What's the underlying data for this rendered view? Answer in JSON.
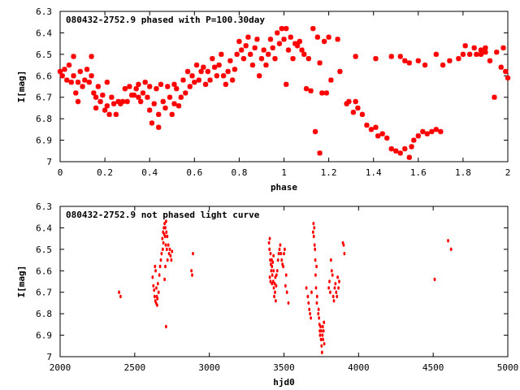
{
  "chart_data": [
    {
      "type": "scatter",
      "title": "080432-2752.9 phased with P=100.30day",
      "xlabel": "phase",
      "ylabel": "I[mag]",
      "xlim": [
        0,
        2
      ],
      "ylim": [
        7.0,
        6.3
      ],
      "y_inverted": true,
      "grid": false,
      "marker_color": "#ff0000",
      "marker": "star",
      "x_ticks": [
        "0",
        "0.2",
        "0.4",
        "0.6",
        "0.8",
        "1",
        "1.2",
        "1.4",
        "1.6",
        "1.8",
        "2"
      ],
      "y_ticks": [
        "6.3",
        "6.4",
        "6.5",
        "6.6",
        "6.7",
        "6.8",
        "6.9",
        "7"
      ],
      "points": [
        [
          0.0,
          6.58
        ],
        [
          0.01,
          6.6
        ],
        [
          0.02,
          6.57
        ],
        [
          0.03,
          6.62
        ],
        [
          0.04,
          6.55
        ],
        [
          0.05,
          6.63
        ],
        [
          0.06,
          6.51
        ],
        [
          0.06,
          6.6
        ],
        [
          0.07,
          6.68
        ],
        [
          0.08,
          6.72
        ],
        [
          0.08,
          6.63
        ],
        [
          0.09,
          6.58
        ],
        [
          0.1,
          6.65
        ],
        [
          0.11,
          6.62
        ],
        [
          0.12,
          6.57
        ],
        [
          0.13,
          6.63
        ],
        [
          0.14,
          6.51
        ],
        [
          0.14,
          6.6
        ],
        [
          0.15,
          6.68
        ],
        [
          0.16,
          6.75
        ],
        [
          0.16,
          6.7
        ],
        [
          0.17,
          6.65
        ],
        [
          0.18,
          6.72
        ],
        [
          0.19,
          6.69
        ],
        [
          0.2,
          6.76
        ],
        [
          0.21,
          6.74
        ],
        [
          0.21,
          6.63
        ],
        [
          0.22,
          6.78
        ],
        [
          0.23,
          6.7
        ],
        [
          0.24,
          6.73
        ],
        [
          0.25,
          6.78
        ],
        [
          0.26,
          6.72
        ],
        [
          0.27,
          6.73
        ],
        [
          0.28,
          6.72
        ],
        [
          0.29,
          6.66
        ],
        [
          0.3,
          6.72
        ],
        [
          0.31,
          6.65
        ],
        [
          0.32,
          6.69
        ],
        [
          0.33,
          6.69
        ],
        [
          0.34,
          6.66
        ],
        [
          0.35,
          6.7
        ],
        [
          0.35,
          6.64
        ],
        [
          0.36,
          6.72
        ],
        [
          0.37,
          6.68
        ],
        [
          0.38,
          6.63
        ],
        [
          0.39,
          6.7
        ],
        [
          0.4,
          6.65
        ],
        [
          0.4,
          6.76
        ],
        [
          0.41,
          6.82
        ],
        [
          0.42,
          6.73
        ],
        [
          0.43,
          6.66
        ],
        [
          0.44,
          6.78
        ],
        [
          0.44,
          6.84
        ],
        [
          0.45,
          6.64
        ],
        [
          0.46,
          6.72
        ],
        [
          0.47,
          6.75
        ],
        [
          0.48,
          6.65
        ],
        [
          0.49,
          6.7
        ],
        [
          0.5,
          6.78
        ],
        [
          0.51,
          6.73
        ],
        [
          0.51,
          6.64
        ],
        [
          0.52,
          6.66
        ],
        [
          0.53,
          6.74
        ],
        [
          0.54,
          6.7
        ],
        [
          0.55,
          6.62
        ],
        [
          0.56,
          6.68
        ],
        [
          0.57,
          6.58
        ],
        [
          0.58,
          6.65
        ],
        [
          0.59,
          6.6
        ],
        [
          0.6,
          6.63
        ],
        [
          0.61,
          6.55
        ],
        [
          0.62,
          6.62
        ],
        [
          0.63,
          6.58
        ],
        [
          0.64,
          6.56
        ],
        [
          0.65,
          6.64
        ],
        [
          0.66,
          6.58
        ],
        [
          0.67,
          6.62
        ],
        [
          0.68,
          6.52
        ],
        [
          0.69,
          6.56
        ],
        [
          0.7,
          6.6
        ],
        [
          0.71,
          6.55
        ],
        [
          0.72,
          6.5
        ],
        [
          0.73,
          6.6
        ],
        [
          0.74,
          6.64
        ],
        [
          0.75,
          6.58
        ],
        [
          0.76,
          6.53
        ],
        [
          0.77,
          6.62
        ],
        [
          0.78,
          6.57
        ],
        [
          0.79,
          6.5
        ],
        [
          0.8,
          6.44
        ],
        [
          0.81,
          6.48
        ],
        [
          0.82,
          6.52
        ],
        [
          0.83,
          6.46
        ],
        [
          0.84,
          6.42
        ],
        [
          0.85,
          6.5
        ],
        [
          0.86,
          6.55
        ],
        [
          0.87,
          6.47
        ],
        [
          0.88,
          6.43
        ],
        [
          0.89,
          6.6
        ],
        [
          0.9,
          6.52
        ],
        [
          0.91,
          6.48
        ],
        [
          0.92,
          6.55
        ],
        [
          0.93,
          6.5
        ],
        [
          0.94,
          6.43
        ],
        [
          0.95,
          6.47
        ],
        [
          0.96,
          6.52
        ],
        [
          0.97,
          6.4
        ],
        [
          0.98,
          6.45
        ],
        [
          0.99,
          6.38
        ],
        [
          1.0,
          6.43
        ],
        [
          1.01,
          6.64
        ],
        [
          1.01,
          6.38
        ],
        [
          1.02,
          6.48
        ],
        [
          1.03,
          6.42
        ],
        [
          1.04,
          6.52
        ],
        [
          1.05,
          6.45
        ],
        [
          1.06,
          6.46
        ],
        [
          1.07,
          6.44
        ],
        [
          1.08,
          6.48
        ],
        [
          1.09,
          6.5
        ],
        [
          1.1,
          6.66
        ],
        [
          1.11,
          6.52
        ],
        [
          1.12,
          6.67
        ],
        [
          1.13,
          6.38
        ],
        [
          1.14,
          6.86
        ],
        [
          1.15,
          6.42
        ],
        [
          1.16,
          6.54
        ],
        [
          1.16,
          6.96
        ],
        [
          1.17,
          6.68
        ],
        [
          1.18,
          6.44
        ],
        [
          1.19,
          6.68
        ],
        [
          1.2,
          6.42
        ],
        [
          1.21,
          6.62
        ],
        [
          1.25,
          6.58
        ],
        [
          1.28,
          6.73
        ],
        [
          1.29,
          6.72
        ],
        [
          1.31,
          6.77
        ],
        [
          1.32,
          6.72
        ],
        [
          1.33,
          6.75
        ],
        [
          1.35,
          6.78
        ],
        [
          1.37,
          6.83
        ],
        [
          1.39,
          6.85
        ],
        [
          1.41,
          6.84
        ],
        [
          1.42,
          6.88
        ],
        [
          1.44,
          6.87
        ],
        [
          1.46,
          6.89
        ],
        [
          1.48,
          6.94
        ],
        [
          1.5,
          6.95
        ],
        [
          1.52,
          6.96
        ],
        [
          1.54,
          6.94
        ],
        [
          1.56,
          6.98
        ],
        [
          1.57,
          6.93
        ],
        [
          1.58,
          6.9
        ],
        [
          1.6,
          6.88
        ],
        [
          1.62,
          6.86
        ],
        [
          1.64,
          6.87
        ],
        [
          1.66,
          6.86
        ],
        [
          1.68,
          6.85
        ],
        [
          1.7,
          6.86
        ],
        [
          1.24,
          6.43
        ],
        [
          1.32,
          6.51
        ],
        [
          1.41,
          6.52
        ],
        [
          1.48,
          6.51
        ],
        [
          1.52,
          6.51
        ],
        [
          1.54,
          6.53
        ],
        [
          1.56,
          6.54
        ],
        [
          1.6,
          6.53
        ],
        [
          1.63,
          6.55
        ],
        [
          1.68,
          6.5
        ],
        [
          1.71,
          6.55
        ],
        [
          1.74,
          6.53
        ],
        [
          1.78,
          6.52
        ],
        [
          1.8,
          6.5
        ],
        [
          1.83,
          6.5
        ],
        [
          1.86,
          6.5
        ],
        [
          1.88,
          6.5
        ],
        [
          1.9,
          6.49
        ],
        [
          1.92,
          6.53
        ],
        [
          1.95,
          6.49
        ],
        [
          1.97,
          6.56
        ],
        [
          1.99,
          6.58
        ],
        [
          2.0,
          6.61
        ],
        [
          1.94,
          6.7
        ],
        [
          1.88,
          6.48
        ],
        [
          1.85,
          6.47
        ],
        [
          1.9,
          6.47
        ],
        [
          1.81,
          6.46
        ],
        [
          1.98,
          6.47
        ]
      ]
    },
    {
      "type": "scatter",
      "title": "080432-2752.9 not phased light curve",
      "xlabel": "hjd0",
      "ylabel": "I[mag]",
      "xlim": [
        2000,
        5000
      ],
      "ylim": [
        7.0,
        6.3
      ],
      "y_inverted": true,
      "grid": false,
      "marker_color": "#ff0000",
      "marker": "dot",
      "x_ticks": [
        "2000",
        "2500",
        "3000",
        "3500",
        "4000",
        "4500",
        "5000"
      ],
      "y_ticks": [
        "6.3",
        "6.4",
        "6.5",
        "6.6",
        "6.7",
        "6.8",
        "6.9",
        "7"
      ],
      "points": [
        [
          2395,
          6.7
        ],
        [
          2405,
          6.72
        ],
        [
          2620,
          6.63
        ],
        [
          2625,
          6.67
        ],
        [
          2630,
          6.69
        ],
        [
          2633,
          6.72
        ],
        [
          2636,
          6.58
        ],
        [
          2638,
          6.74
        ],
        [
          2640,
          6.6
        ],
        [
          2643,
          6.75
        ],
        [
          2645,
          6.68
        ],
        [
          2648,
          6.72
        ],
        [
          2650,
          6.76
        ],
        [
          2652,
          6.73
        ],
        [
          2655,
          6.66
        ],
        [
          2660,
          6.7
        ],
        [
          2665,
          6.62
        ],
        [
          2670,
          6.58
        ],
        [
          2675,
          6.55
        ],
        [
          2680,
          6.52
        ],
        [
          2685,
          6.45
        ],
        [
          2688,
          6.5
        ],
        [
          2690,
          6.42
        ],
        [
          2692,
          6.47
        ],
        [
          2695,
          6.4
        ],
        [
          2698,
          6.43
        ],
        [
          2700,
          6.38
        ],
        [
          2703,
          6.44
        ],
        [
          2705,
          6.4
        ],
        [
          2708,
          6.48
        ],
        [
          2710,
          6.37
        ],
        [
          2712,
          6.42
        ],
        [
          2715,
          6.5
        ],
        [
          2718,
          6.44
        ],
        [
          2720,
          6.55
        ],
        [
          2725,
          6.48
        ],
        [
          2730,
          6.52
        ],
        [
          2735,
          6.5
        ],
        [
          2740,
          6.53
        ],
        [
          2745,
          6.55
        ],
        [
          2750,
          6.51
        ],
        [
          2710,
          6.86
        ],
        [
          2700,
          6.64
        ],
        [
          2705,
          6.58
        ],
        [
          2880,
          6.6
        ],
        [
          2885,
          6.62
        ],
        [
          2890,
          6.52
        ],
        [
          3400,
          6.47
        ],
        [
          3403,
          6.5
        ],
        [
          3405,
          6.45
        ],
        [
          3408,
          6.55
        ],
        [
          3410,
          6.52
        ],
        [
          3412,
          6.57
        ],
        [
          3415,
          6.6
        ],
        [
          3418,
          6.55
        ],
        [
          3420,
          6.58
        ],
        [
          3422,
          6.62
        ],
        [
          3425,
          6.56
        ],
        [
          3428,
          6.65
        ],
        [
          3430,
          6.6
        ],
        [
          3432,
          6.68
        ],
        [
          3435,
          6.72
        ],
        [
          3438,
          6.66
        ],
        [
          3440,
          6.7
        ],
        [
          3442,
          6.63
        ],
        [
          3445,
          6.74
        ],
        [
          3448,
          6.67
        ],
        [
          3450,
          6.62
        ],
        [
          3455,
          6.6
        ],
        [
          3460,
          6.55
        ],
        [
          3465,
          6.52
        ],
        [
          3470,
          6.5
        ],
        [
          3475,
          6.48
        ],
        [
          3480,
          6.52
        ],
        [
          3485,
          6.55
        ],
        [
          3490,
          6.57
        ],
        [
          3495,
          6.58
        ],
        [
          3500,
          6.52
        ],
        [
          3505,
          6.5
        ],
        [
          3510,
          6.67
        ],
        [
          3515,
          6.62
        ],
        [
          3520,
          6.7
        ],
        [
          3530,
          6.75
        ],
        [
          3405,
          6.63
        ],
        [
          3410,
          6.65
        ],
        [
          3420,
          6.66
        ],
        [
          3430,
          6.53
        ],
        [
          3650,
          6.68
        ],
        [
          3660,
          6.72
        ],
        [
          3665,
          6.75
        ],
        [
          3670,
          6.78
        ],
        [
          3675,
          6.8
        ],
        [
          3680,
          6.82
        ],
        [
          3685,
          6.7
        ],
        [
          3695,
          6.42
        ],
        [
          3698,
          6.38
        ],
        [
          3700,
          6.44
        ],
        [
          3703,
          6.4
        ],
        [
          3705,
          6.48
        ],
        [
          3708,
          6.5
        ],
        [
          3710,
          6.55
        ],
        [
          3712,
          6.62
        ],
        [
          3715,
          6.68
        ],
        [
          3718,
          6.58
        ],
        [
          3720,
          6.75
        ],
        [
          3722,
          6.72
        ],
        [
          3730,
          6.8
        ],
        [
          3732,
          6.78
        ],
        [
          3735,
          6.82
        ],
        [
          3738,
          6.85
        ],
        [
          3740,
          6.88
        ],
        [
          3742,
          6.9
        ],
        [
          3745,
          6.86
        ],
        [
          3748,
          6.92
        ],
        [
          3750,
          6.88
        ],
        [
          3752,
          6.95
        ],
        [
          3755,
          6.98
        ],
        [
          3758,
          6.9
        ],
        [
          3760,
          6.86
        ],
        [
          3762,
          6.92
        ],
        [
          3765,
          6.88
        ],
        [
          3768,
          6.84
        ],
        [
          3770,
          6.94
        ],
        [
          3800,
          6.68
        ],
        [
          3805,
          6.65
        ],
        [
          3810,
          6.7
        ],
        [
          3815,
          6.55
        ],
        [
          3820,
          6.6
        ],
        [
          3825,
          6.62
        ],
        [
          3830,
          6.72
        ],
        [
          3835,
          6.74
        ],
        [
          3840,
          6.68
        ],
        [
          3845,
          6.66
        ],
        [
          3850,
          6.7
        ],
        [
          3855,
          6.72
        ],
        [
          3860,
          6.63
        ],
        [
          3865,
          6.68
        ],
        [
          3870,
          6.65
        ],
        [
          3895,
          6.47
        ],
        [
          3900,
          6.48
        ],
        [
          3905,
          6.52
        ],
        [
          4510,
          6.64
        ],
        [
          4600,
          6.46
        ],
        [
          4620,
          6.5
        ]
      ]
    }
  ]
}
